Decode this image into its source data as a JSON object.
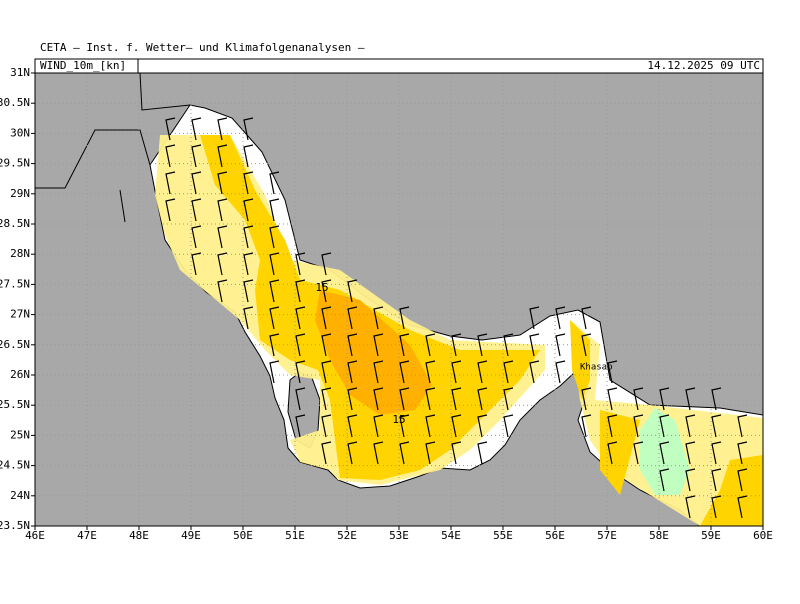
{
  "header": {
    "institute": "CETA – Inst. f. Wetter– und Klimafolgenanalysen –",
    "field": "WIND_10m_[kn]",
    "valid": "14.12.2025 09 UTC"
  },
  "map": {
    "xlim": [
      46,
      60
    ],
    "ylim": [
      23.5,
      31
    ],
    "xticks": [
      {
        "value": 46,
        "label": "46E"
      },
      {
        "value": 47,
        "label": "47E"
      },
      {
        "value": 48,
        "label": "48E"
      },
      {
        "value": 49,
        "label": "49E"
      },
      {
        "value": 50,
        "label": "50E"
      },
      {
        "value": 51,
        "label": "51E"
      },
      {
        "value": 52,
        "label": "52E"
      },
      {
        "value": 53,
        "label": "53E"
      },
      {
        "value": 54,
        "label": "54E"
      },
      {
        "value": 55,
        "label": "55E"
      },
      {
        "value": 56,
        "label": "56E"
      },
      {
        "value": 57,
        "label": "57E"
      },
      {
        "value": 58,
        "label": "58E"
      },
      {
        "value": 59,
        "label": "59E"
      },
      {
        "value": 60,
        "label": "60E"
      }
    ],
    "yticks": [
      {
        "value": 23.5,
        "label": "23.5N"
      },
      {
        "value": 24,
        "label": "24N"
      },
      {
        "value": 24.5,
        "label": "24.5N"
      },
      {
        "value": 25,
        "label": "25N"
      },
      {
        "value": 25.5,
        "label": "25.5N"
      },
      {
        "value": 26,
        "label": "26N"
      },
      {
        "value": 26.5,
        "label": "26.5N"
      },
      {
        "value": 27,
        "label": "27N"
      },
      {
        "value": 27.5,
        "label": "27.5N"
      },
      {
        "value": 28,
        "label": "28N"
      },
      {
        "value": 28.5,
        "label": "28.5N"
      },
      {
        "value": 29,
        "label": "29N"
      },
      {
        "value": 29.5,
        "label": "29.5N"
      },
      {
        "value": 30,
        "label": "30N"
      },
      {
        "value": 30.5,
        "label": "30.5N"
      },
      {
        "value": 31,
        "label": "31N"
      }
    ],
    "contour_labels": [
      "15",
      "15"
    ],
    "places": [
      "Khasab"
    ]
  }
}
